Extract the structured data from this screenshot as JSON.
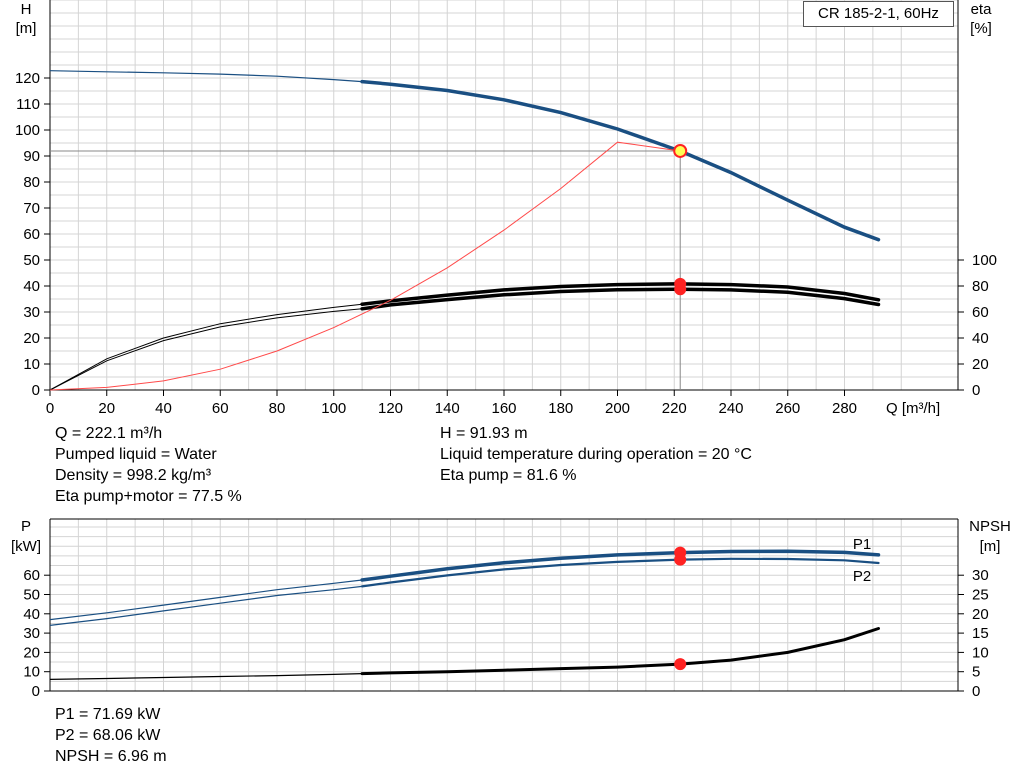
{
  "title": "CR 185-2-1, 60Hz",
  "colors": {
    "head": "#1a4f82",
    "efficiency": "#000000",
    "system": "#ff4a4a",
    "power": "#1a4f82",
    "npsh": "#000000",
    "duty_point": "#ff2222",
    "duty_point_head": "#ffff55",
    "grid": "#d4d4d4"
  },
  "info_top_left": [
    "Q = 222.1 m³/h",
    "Pumped liquid = Water",
    "Density = 998.2 kg/m³",
    "Eta pump+motor = 77.5 %"
  ],
  "info_top_right": [
    "H = 91.93 m",
    "Liquid temperature during operation = 20 °C",
    "Eta pump = 81.6 %"
  ],
  "info_bottom": [
    "P1 = 71.69 kW",
    "P2 = 68.06 kW",
    "NPSH = 6.96 m"
  ],
  "chart_data": [
    {
      "type": "line",
      "panel": "head-efficiency",
      "xlabel": "Q [m³/h]",
      "ylabel_left": "H\n[m]",
      "ylabel_right": "eta\n[%]",
      "xlim": [
        0,
        296
      ],
      "x_ticks": [
        0,
        20,
        40,
        60,
        80,
        100,
        120,
        140,
        160,
        180,
        200,
        220,
        240,
        260,
        280
      ],
      "ylim_left": [
        0,
        130
      ],
      "y_ticks_left": [
        0,
        10,
        20,
        30,
        40,
        50,
        60,
        70,
        80,
        90,
        100,
        110,
        120
      ],
      "ylim_right": [
        0,
        260
      ],
      "y_ticks_right": [
        0,
        20,
        40,
        60,
        80,
        100
      ],
      "grid": true,
      "series": [
        {
          "key": "head",
          "axis": "left",
          "thick_from": 110,
          "x": [
            0,
            20,
            40,
            60,
            80,
            100,
            110,
            120,
            140,
            160,
            180,
            200,
            220,
            222.1,
            240,
            260,
            280,
            292
          ],
          "values": [
            122.8,
            122.4,
            122.0,
            121.5,
            120.7,
            119.4,
            118.6,
            117.6,
            115.2,
            111.6,
            106.7,
            100.4,
            92.7,
            91.93,
            83.6,
            73.0,
            62.6,
            57.8
          ]
        },
        {
          "key": "eta-pump",
          "axis": "right",
          "thick_from": 110,
          "x": [
            0,
            20,
            40,
            60,
            80,
            100,
            110,
            120,
            140,
            160,
            180,
            200,
            220,
            222.1,
            240,
            260,
            280,
            292
          ],
          "values": [
            0,
            24,
            40,
            51,
            58,
            63.5,
            66,
            68.5,
            73,
            77,
            79.6,
            81.1,
            81.6,
            81.6,
            81.1,
            79.2,
            74.2,
            69.4
          ]
        },
        {
          "key": "eta-pump-motor",
          "axis": "right",
          "thick_from": 110,
          "x": [
            0,
            20,
            40,
            60,
            80,
            100,
            110,
            120,
            140,
            160,
            180,
            200,
            220,
            222.1,
            240,
            260,
            280,
            292
          ],
          "values": [
            0,
            22.5,
            38,
            48.5,
            55.5,
            60.5,
            62.5,
            65.5,
            69.5,
            73.2,
            75.8,
            77.1,
            77.5,
            77.5,
            77.0,
            75.2,
            70.3,
            65.8
          ]
        },
        {
          "key": "system",
          "axis": "left",
          "thin": true,
          "x": [
            0,
            20,
            40,
            60,
            80,
            100,
            120,
            140,
            160,
            180,
            200,
            222.1
          ],
          "values": [
            0,
            1,
            3.5,
            8,
            15,
            24,
            34.5,
            47,
            61.5,
            77.5,
            95.3,
            91.93
          ]
        }
      ],
      "duty_point": {
        "x": 222.1,
        "head": 91.93,
        "eta_pump": 81.6,
        "eta_pump_motor": 77.5
      }
    },
    {
      "type": "line",
      "panel": "power-npsh",
      "ylabel_left": "P\n[kW]",
      "ylabel_right": "NPSH\n[m]",
      "xlim": [
        0,
        296
      ],
      "ylim_left": [
        0,
        80
      ],
      "y_ticks_left": [
        0,
        10,
        20,
        30,
        40,
        50,
        60
      ],
      "ylim_right": [
        0,
        40
      ],
      "y_ticks_right": [
        0,
        5,
        10,
        15,
        20,
        25,
        30
      ],
      "grid": true,
      "series": [
        {
          "key": "P1",
          "name": "P1",
          "axis": "left",
          "thick_from": 110,
          "x": [
            0,
            20,
            40,
            60,
            80,
            100,
            110,
            120,
            140,
            160,
            180,
            200,
            222.1,
            240,
            260,
            280,
            292
          ],
          "values": [
            37.0,
            40.5,
            44.5,
            48.5,
            52.5,
            55.8,
            57.5,
            59.5,
            63.3,
            66.4,
            68.8,
            70.5,
            71.69,
            72.3,
            72.4,
            71.8,
            70.5
          ]
        },
        {
          "key": "P2",
          "name": "P2",
          "axis": "left",
          "thick_from": 110,
          "x": [
            0,
            20,
            40,
            60,
            80,
            100,
            110,
            120,
            140,
            160,
            180,
            200,
            222.1,
            240,
            260,
            280,
            292
          ],
          "values": [
            34.0,
            37.5,
            41.5,
            45.5,
            49.5,
            52.5,
            54.2,
            56.2,
            59.9,
            63.0,
            65.3,
            66.9,
            68.06,
            68.5,
            68.4,
            67.7,
            66.3
          ]
        },
        {
          "key": "NPSH",
          "axis": "right",
          "thick_from": 110,
          "x": [
            0,
            20,
            40,
            60,
            80,
            100,
            110,
            120,
            140,
            160,
            180,
            200,
            222.1,
            240,
            260,
            280,
            292
          ],
          "values": [
            3.0,
            3.25,
            3.5,
            3.75,
            4.0,
            4.3,
            4.5,
            4.7,
            5.0,
            5.4,
            5.8,
            6.2,
            6.96,
            8.0,
            10.0,
            13.3,
            16.2
          ]
        }
      ],
      "duty_point": {
        "x": 222.1,
        "P1": 71.69,
        "P2": 68.06,
        "NPSH": 6.96
      }
    }
  ]
}
